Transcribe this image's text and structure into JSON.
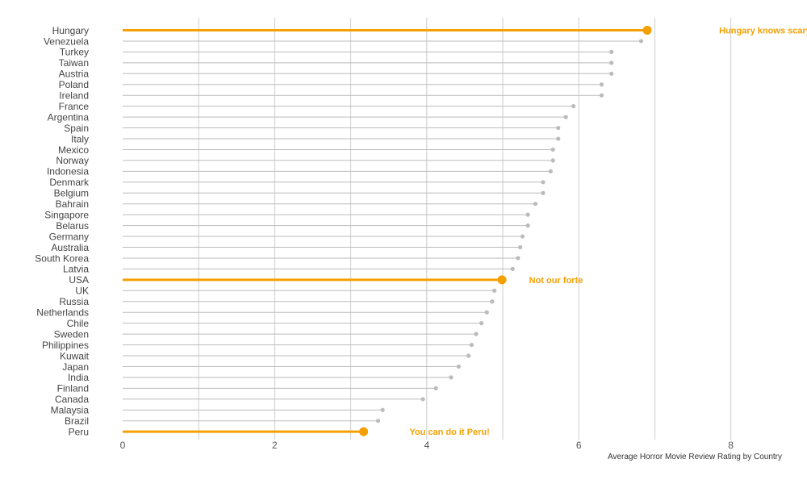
{
  "chart_data": {
    "type": "lollipop",
    "title": "",
    "xlabel": "Average Horror Movie Review Rating by Country",
    "ylabel": "",
    "xlim": [
      0,
      8.6
    ],
    "xticks": [
      0,
      2,
      4,
      6,
      8
    ],
    "grid": "vertical",
    "accent_color": "#f5a000",
    "base_color": "#bbbbbb",
    "highlight": [
      "Hungary",
      "USA",
      "Peru"
    ],
    "categories": [
      "Hungary",
      "Venezuela",
      "Turkey",
      "Taiwan",
      "Austria",
      "Poland",
      "Ireland",
      "France",
      "Argentina",
      "Spain",
      "Italy",
      "Mexico",
      "Norway",
      "Indonesia",
      "Denmark",
      "Belgium",
      "Bahrain",
      "Singapore",
      "Belarus",
      "Germany",
      "Australia",
      "South Korea",
      "Latvia",
      "USA",
      "UK",
      "Russia",
      "Netherlands",
      "Chile",
      "Sweden",
      "Philippines",
      "Kuwait",
      "Japan",
      "India",
      "Finland",
      "Canada",
      "Malaysia",
      "Brazil",
      "Peru"
    ],
    "values": [
      6.9,
      6.82,
      6.43,
      6.43,
      6.43,
      6.3,
      6.3,
      5.93,
      5.83,
      5.73,
      5.73,
      5.66,
      5.66,
      5.63,
      5.53,
      5.53,
      5.43,
      5.33,
      5.33,
      5.26,
      5.23,
      5.2,
      5.13,
      4.99,
      4.89,
      4.86,
      4.79,
      4.72,
      4.65,
      4.59,
      4.55,
      4.42,
      4.32,
      4.12,
      3.95,
      3.42,
      3.36,
      3.17
    ],
    "annotations": [
      {
        "category": "Hungary",
        "text": "Hungary knows scary",
        "x": 8.45
      },
      {
        "category": "USA",
        "text": "Not our forte",
        "x": 5.7
      },
      {
        "category": "Peru",
        "text": "You can do it Peru!",
        "x": 4.3
      }
    ]
  }
}
